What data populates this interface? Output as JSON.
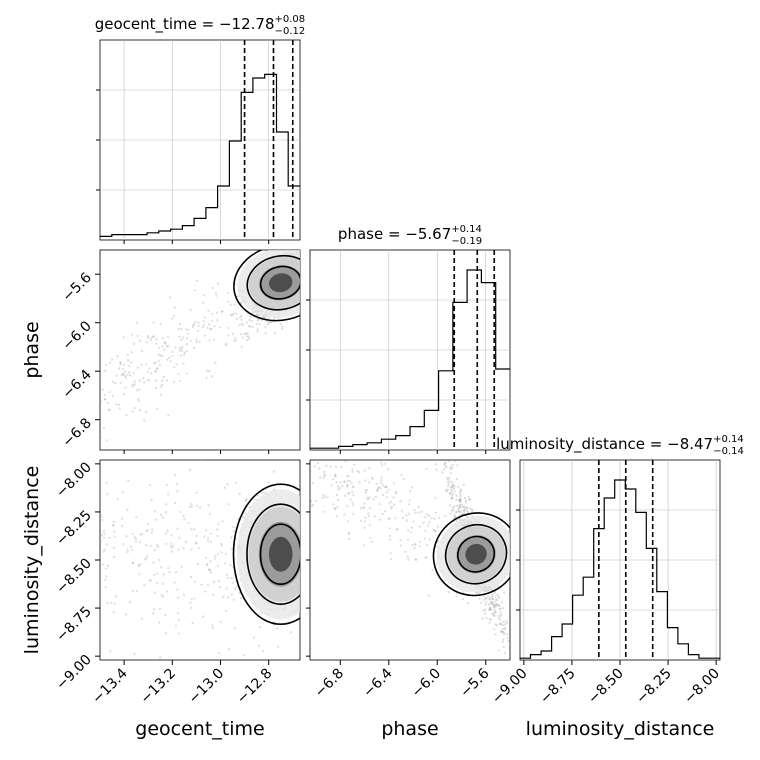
{
  "chart_data": {
    "type": "corner",
    "parameters": [
      "geocent_time",
      "phase",
      "luminosity_distance"
    ],
    "titles": [
      {
        "param": "geocent_time",
        "prefix": "geocent_time = ",
        "median": "−12.78",
        "plus": "+0.08",
        "minus": "−0.12"
      },
      {
        "param": "phase",
        "prefix": "phase = ",
        "median": "−5.67",
        "plus": "+0.14",
        "minus": "−0.19"
      },
      {
        "param": "luminosity_distance",
        "prefix": "luminosity_distance = ",
        "median": "−8.47",
        "plus": "+0.14",
        "minus": "−0.14"
      }
    ],
    "ranges": {
      "geocent_time": [
        -13.5,
        -12.67
      ],
      "phase": [
        -7.05,
        -5.4
      ],
      "luminosity_distance": [
        -9.02,
        -7.98
      ]
    },
    "ticks": {
      "geocent_time": [
        -13.4,
        -13.2,
        -13.0,
        -12.8
      ],
      "phase": [
        -6.8,
        -6.4,
        -6.0,
        -5.6
      ],
      "luminosity_distance": [
        -9.0,
        -8.75,
        -8.5,
        -8.25,
        -8.0
      ]
    },
    "tick_labels": {
      "geocent_time": [
        "−13.4",
        "−13.2",
        "−13.0",
        "−12.8"
      ],
      "phase": [
        "−6.8",
        "−6.4",
        "−6.0",
        "−5.6"
      ],
      "luminosity_distance": [
        "−9.00",
        "−8.75",
        "−8.50",
        "−8.25",
        "−8.00"
      ]
    },
    "quantiles": {
      "geocent_time": [
        -12.9,
        -12.78,
        -12.7
      ],
      "phase": [
        -5.86,
        -5.67,
        -5.53
      ],
      "luminosity_distance": [
        -8.61,
        -8.47,
        -8.33
      ]
    },
    "histograms": {
      "geocent_time": [
        0.02,
        0.03,
        0.03,
        0.03,
        0.04,
        0.05,
        0.06,
        0.08,
        0.12,
        0.18,
        0.3,
        0.55,
        0.82,
        0.9,
        0.92,
        0.6,
        0.3
      ],
      "phase": [
        0.01,
        0.01,
        0.02,
        0.03,
        0.04,
        0.06,
        0.08,
        0.13,
        0.22,
        0.44,
        0.82,
        1.0,
        0.93,
        0.45
      ],
      "luminosity_distance": [
        0.01,
        0.03,
        0.05,
        0.13,
        0.2,
        0.36,
        0.46,
        0.73,
        0.9,
        1.0,
        0.95,
        0.82,
        0.62,
        0.38,
        0.18,
        0.09,
        0.03,
        0.01,
        0.01
      ]
    },
    "grid": true,
    "legend": "none"
  }
}
